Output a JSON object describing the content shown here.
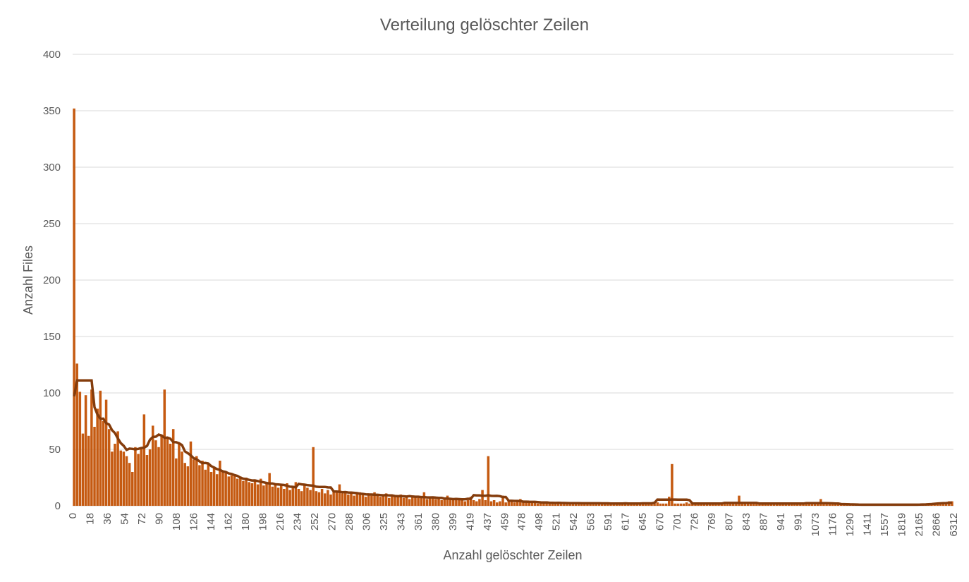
{
  "chart_data": {
    "type": "bar",
    "title": "Verteilung gelöschter Zeilen",
    "xlabel": "Anzahl gelöschter Zeilen",
    "ylabel": "Anzahl Files",
    "ylim": [
      0,
      400
    ],
    "y_ticks": [
      0,
      50,
      100,
      150,
      200,
      250,
      300,
      350,
      400
    ],
    "x_tick_labels": [
      "0",
      "18",
      "36",
      "54",
      "72",
      "90",
      "108",
      "126",
      "144",
      "162",
      "180",
      "198",
      "216",
      "234",
      "252",
      "270",
      "288",
      "306",
      "325",
      "343",
      "361",
      "380",
      "399",
      "419",
      "437",
      "459",
      "478",
      "498",
      "521",
      "542",
      "563",
      "591",
      "617",
      "645",
      "670",
      "701",
      "726",
      "769",
      "807",
      "843",
      "887",
      "941",
      "991",
      "1073",
      "1176",
      "1290",
      "1411",
      "1557",
      "1819",
      "2165",
      "2866",
      "6312"
    ],
    "grid": true,
    "legend": "none",
    "colors": {
      "bars": "#c55a11",
      "trend": "#843c0c"
    },
    "series": [
      {
        "values": [
          352,
          126,
          101,
          64,
          98,
          62,
          103,
          70,
          86,
          102,
          75,
          94,
          68,
          48,
          55,
          66,
          49,
          48,
          44,
          38,
          30,
          52,
          46,
          51,
          81,
          45,
          50,
          71,
          58,
          52,
          63,
          103,
          60,
          55,
          68,
          42,
          55,
          48,
          38,
          35,
          57,
          41,
          44,
          36,
          40,
          32,
          38,
          30,
          34,
          28,
          40,
          30,
          29,
          26,
          27,
          28,
          24,
          26,
          22,
          25,
          21,
          20,
          22,
          19,
          24,
          18,
          20,
          29,
          17,
          19,
          16,
          18,
          15,
          20,
          14,
          17,
          21,
          15,
          13,
          18,
          16,
          14,
          52,
          13,
          12,
          15,
          11,
          14,
          10,
          13,
          12,
          19,
          11,
          13,
          10,
          12,
          9,
          11,
          12,
          10,
          8,
          11,
          9,
          12,
          10,
          8,
          9,
          11,
          7,
          10,
          9,
          8,
          10,
          7,
          9,
          6,
          8,
          9,
          7,
          8,
          12,
          6,
          7,
          8,
          6,
          7,
          5,
          6,
          9,
          6,
          5,
          7,
          5,
          6,
          4,
          5,
          8,
          5,
          4,
          6,
          14,
          5,
          44,
          4,
          5,
          3,
          4,
          9,
          3,
          4,
          5,
          3,
          4,
          6,
          4,
          3,
          4,
          3,
          3,
          2,
          3,
          3,
          4,
          3,
          2,
          3,
          2,
          3,
          2,
          2,
          2,
          3,
          2,
          2,
          3,
          2,
          2,
          3,
          2,
          2,
          2,
          2,
          2,
          3,
          2,
          2,
          2,
          2,
          2,
          2,
          2,
          2,
          2,
          2,
          3,
          2,
          2,
          2,
          2,
          2,
          3,
          2,
          2,
          2,
          8,
          37,
          2,
          2,
          2,
          2,
          3,
          2,
          2,
          2,
          2,
          2,
          2,
          2,
          2,
          2,
          2,
          2,
          2,
          2,
          2,
          2,
          2,
          2,
          9,
          2,
          2,
          2,
          2,
          2,
          2,
          2,
          2,
          2,
          2,
          2,
          2,
          2,
          2,
          2,
          2,
          2,
          2,
          2,
          2,
          2,
          2,
          2,
          2,
          2,
          2,
          2,
          6,
          2,
          2,
          2,
          2,
          2,
          2,
          2,
          1,
          1,
          1,
          1,
          1,
          1,
          1,
          1,
          1,
          1,
          1,
          1,
          1,
          1,
          1,
          1,
          1,
          1,
          1,
          1,
          1,
          1,
          1,
          1,
          1,
          1,
          1,
          1,
          1,
          1,
          1,
          2,
          2,
          2,
          3,
          3,
          4,
          4
        ]
      }
    ],
    "trendline": {
      "type": "moving-average",
      "window": 12
    }
  }
}
